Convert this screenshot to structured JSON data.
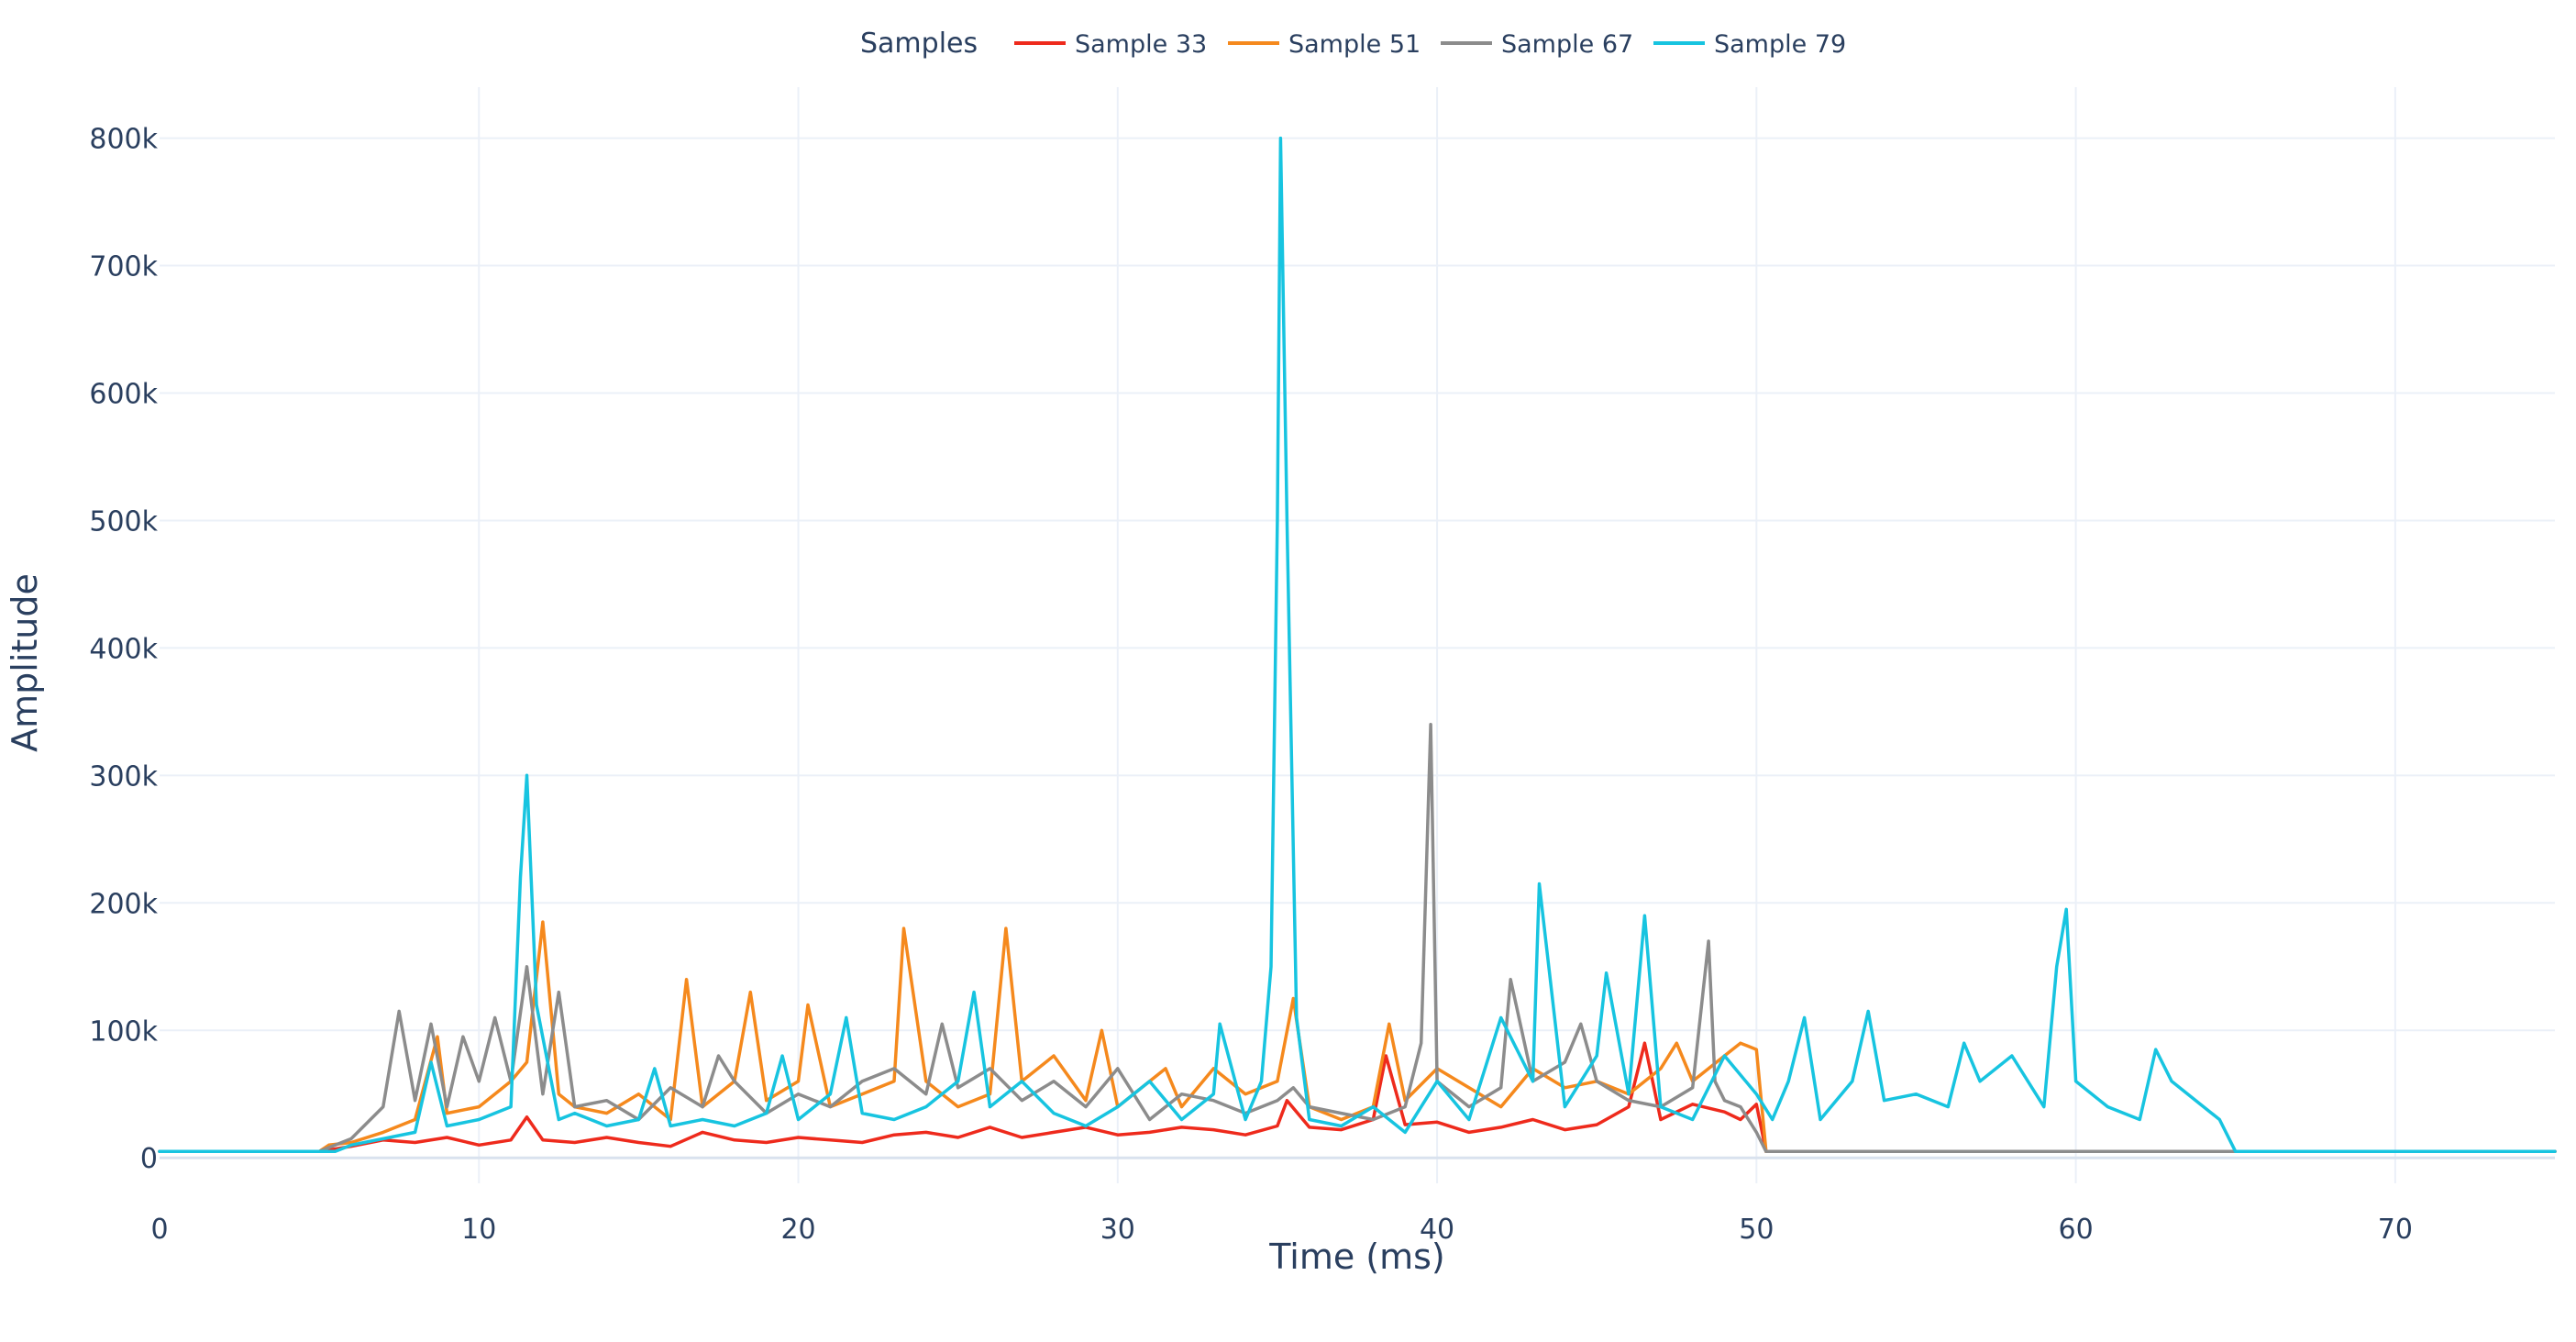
{
  "chart_data": {
    "type": "line",
    "title": "",
    "xlabel": "Time (ms)",
    "ylabel": "Amplitude",
    "xlim": [
      0,
      75
    ],
    "ylim": [
      -20000,
      840000
    ],
    "xticks": [
      0,
      10,
      20,
      30,
      40,
      50,
      60,
      70
    ],
    "xtick_labels": [
      "0",
      "10",
      "20",
      "30",
      "40",
      "50",
      "60",
      "70"
    ],
    "yticks": [
      0,
      100000,
      200000,
      300000,
      400000,
      500000,
      600000,
      700000,
      800000
    ],
    "ytick_labels": [
      "0",
      "100k",
      "200k",
      "300k",
      "400k",
      "500k",
      "600k",
      "700k",
      "800k"
    ],
    "grid": true,
    "legend": {
      "title": "Samples",
      "placement": "top-center",
      "orientation": "horizontal"
    },
    "series": [
      {
        "name": "Sample 33",
        "color": "#ee2a1c",
        "x": [
          0,
          5,
          6,
          7,
          8,
          9,
          10,
          11,
          11.5,
          12,
          13,
          14,
          15,
          16,
          17,
          18,
          19,
          20,
          21,
          22,
          23,
          24,
          25,
          26,
          27,
          28,
          29,
          30,
          31,
          32,
          33,
          34,
          35,
          35.3,
          36,
          37,
          38,
          38.4,
          39,
          40,
          41,
          42,
          43,
          44,
          45,
          46,
          46.5,
          47,
          48,
          49,
          49.5,
          50,
          50.3,
          75
        ],
        "y": [
          5000,
          5000,
          9000,
          14000,
          12000,
          16000,
          10000,
          14000,
          32000,
          14000,
          12000,
          16000,
          12000,
          9000,
          20000,
          14000,
          12000,
          16000,
          14000,
          12000,
          18000,
          20000,
          16000,
          24000,
          16000,
          20000,
          24000,
          18000,
          20000,
          24000,
          22000,
          18000,
          25000,
          45000,
          24000,
          22000,
          30000,
          80000,
          26000,
          28000,
          20000,
          24000,
          30000,
          22000,
          26000,
          40000,
          90000,
          30000,
          42000,
          36000,
          30000,
          42000,
          5000,
          5000
        ]
      },
      {
        "name": "Sample 51",
        "color": "#f5891d",
        "x": [
          0,
          5,
          5.3,
          6,
          7,
          8,
          8.7,
          9,
          10,
          11,
          11.5,
          12,
          12.5,
          13,
          14,
          15,
          16,
          16.5,
          17,
          18,
          18.5,
          19,
          20,
          20.3,
          21,
          22,
          23,
          23.3,
          24,
          25,
          26,
          26.5,
          27,
          28,
          29,
          29.5,
          30,
          31,
          31.5,
          32,
          33,
          34,
          35,
          35.5,
          36,
          37,
          38,
          38.5,
          39,
          40,
          41,
          42,
          43,
          44,
          45,
          46,
          47,
          47.5,
          48,
          49,
          49.5,
          50,
          50.3,
          75
        ],
        "y": [
          5000,
          5000,
          10000,
          12000,
          20000,
          30000,
          95000,
          35000,
          40000,
          60000,
          75000,
          185000,
          50000,
          40000,
          35000,
          50000,
          30000,
          140000,
          40000,
          60000,
          130000,
          45000,
          60000,
          120000,
          40000,
          50000,
          60000,
          180000,
          60000,
          40000,
          50000,
          180000,
          60000,
          80000,
          45000,
          100000,
          40000,
          60000,
          70000,
          40000,
          70000,
          50000,
          60000,
          125000,
          40000,
          30000,
          40000,
          105000,
          45000,
          70000,
          55000,
          40000,
          70000,
          55000,
          60000,
          50000,
          70000,
          90000,
          60000,
          80000,
          90000,
          85000,
          5000,
          5000
        ]
      },
      {
        "name": "Sample 67",
        "color": "#8c8c8c",
        "x": [
          0,
          5,
          6,
          7,
          7.5,
          8,
          8.5,
          9,
          9.5,
          10,
          10.5,
          11,
          11.5,
          12,
          12.5,
          13,
          14,
          15,
          16,
          17,
          17.5,
          18,
          19,
          20,
          21,
          22,
          23,
          24,
          24.5,
          25,
          26,
          27,
          28,
          29,
          30,
          31,
          32,
          33,
          34,
          35,
          35.5,
          36,
          37,
          38,
          39,
          39.5,
          39.8,
          40,
          41,
          42,
          42.3,
          43,
          44,
          44.5,
          45,
          46,
          47,
          48,
          48.5,
          48.7,
          49,
          49.5,
          50,
          50.3,
          75
        ],
        "y": [
          5000,
          5000,
          15000,
          40000,
          115000,
          45000,
          105000,
          40000,
          95000,
          60000,
          110000,
          60000,
          150000,
          50000,
          130000,
          40000,
          45000,
          30000,
          55000,
          40000,
          80000,
          60000,
          35000,
          50000,
          40000,
          60000,
          70000,
          50000,
          105000,
          55000,
          70000,
          45000,
          60000,
          40000,
          70000,
          30000,
          50000,
          45000,
          35000,
          45000,
          55000,
          40000,
          35000,
          30000,
          40000,
          90000,
          340000,
          60000,
          40000,
          55000,
          140000,
          60000,
          75000,
          105000,
          60000,
          45000,
          40000,
          55000,
          170000,
          60000,
          45000,
          40000,
          20000,
          5000,
          5000
        ]
      },
      {
        "name": "Sample 79",
        "color": "#17c4e0",
        "x": [
          0,
          5.5,
          6,
          7,
          8,
          8.5,
          9,
          10,
          11,
          11.3,
          11.5,
          11.8,
          12.5,
          13,
          14,
          15,
          15.5,
          16,
          17,
          18,
          19,
          19.5,
          20,
          21,
          21.5,
          22,
          23,
          24,
          25,
          25.5,
          26,
          27,
          28,
          29,
          30,
          31,
          32,
          33,
          33.2,
          34,
          34.5,
          34.8,
          35,
          35.1,
          35.3,
          35.6,
          36,
          37,
          38,
          39,
          40,
          41,
          42,
          43,
          43.2,
          44,
          45,
          45.3,
          46,
          46.5,
          47,
          48,
          49,
          50,
          50.5,
          51,
          51.5,
          52,
          53,
          53.5,
          54,
          55,
          56,
          56.5,
          57,
          58,
          59,
          59.4,
          59.7,
          60,
          61,
          62,
          62.5,
          63,
          64,
          64.5,
          65,
          75
        ],
        "y": [
          5000,
          5000,
          10000,
          15000,
          20000,
          75000,
          25000,
          30000,
          40000,
          220000,
          300000,
          120000,
          30000,
          35000,
          25000,
          30000,
          70000,
          25000,
          30000,
          25000,
          35000,
          80000,
          30000,
          50000,
          110000,
          35000,
          30000,
          40000,
          60000,
          130000,
          40000,
          60000,
          35000,
          25000,
          40000,
          60000,
          30000,
          50000,
          105000,
          30000,
          60000,
          150000,
          500000,
          800000,
          500000,
          110000,
          30000,
          25000,
          40000,
          20000,
          60000,
          30000,
          110000,
          60000,
          215000,
          40000,
          80000,
          145000,
          50000,
          190000,
          40000,
          30000,
          80000,
          50000,
          30000,
          60000,
          110000,
          30000,
          60000,
          115000,
          45000,
          50000,
          40000,
          90000,
          60000,
          80000,
          40000,
          150000,
          195000,
          60000,
          40000,
          30000,
          85000,
          60000,
          40000,
          30000,
          5000,
          5000
        ]
      }
    ]
  }
}
